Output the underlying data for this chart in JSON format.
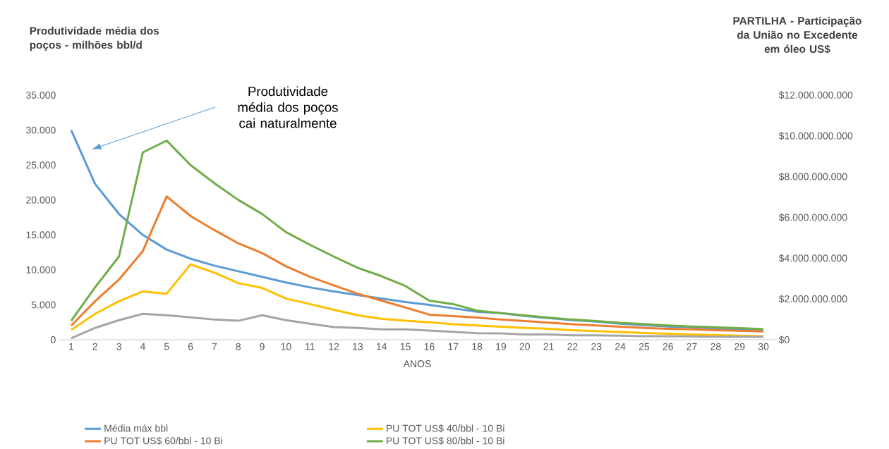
{
  "chart_data": {
    "type": "line",
    "ylabel": "Produtividade média dos poços - milhões bbl/d",
    "y2label": "PARTILHA - Participação da União no Excedente em óleo US$",
    "xlabel": "ANOS",
    "categories": [
      "1",
      "2",
      "3",
      "4",
      "5",
      "6",
      "7",
      "8",
      "9",
      "10",
      "11",
      "12",
      "13",
      "14",
      "15",
      "16",
      "17",
      "18",
      "19",
      "20",
      "21",
      "22",
      "23",
      "24",
      "25",
      "26",
      "27",
      "28",
      "29",
      "30"
    ],
    "series": [
      {
        "name": "Média máx bbl",
        "color": "#5b9bd5",
        "axis": "y",
        "values": [
          30000,
          22300,
          18000,
          15000,
          12900,
          11600,
          10600,
          9800,
          9000,
          8200,
          7500,
          6900,
          6400,
          5900,
          5400,
          5000,
          4500,
          4000,
          3800,
          3400,
          3100,
          2800,
          2600,
          2300,
          2100,
          1900,
          1800,
          1600,
          1500,
          1400
        ]
      },
      {
        "name": "PU TOT US$ 40/bbl - 10 Bi",
        "color": "#ffc000",
        "axis": "y2",
        "values": [
          480000000.0,
          1270000000.0,
          1890000000.0,
          2370000000.0,
          2260000000.0,
          3700000000.0,
          3290000000.0,
          2780000000.0,
          2540000000.0,
          2020000000.0,
          1750000000.0,
          1470000000.0,
          1200000000.0,
          1030000000.0,
          930000000.0,
          860000000.0,
          760000000.0,
          700000000.0,
          640000000.0,
          580000000.0,
          540000000.0,
          470000000.0,
          420000000.0,
          380000000.0,
          330000000.0,
          290000000.0,
          260000000.0,
          230000000.0,
          200000000.0,
          170000000.0
        ]
      },
      {
        "name": "PU TOT US$ 60/bbl - 10 Bi",
        "color": "#ed7d31",
        "axis": "y2",
        "values": [
          690000000.0,
          1890000000.0,
          2950000000.0,
          4350000000.0,
          7030000000.0,
          6070000000.0,
          5380000000.0,
          4730000000.0,
          4250000000.0,
          3600000000.0,
          3090000000.0,
          2670000000.0,
          2260000000.0,
          1920000000.0,
          1580000000.0,
          1230000000.0,
          1160000000.0,
          1090000000.0,
          990000000.0,
          920000000.0,
          840000000.0,
          760000000.0,
          700000000.0,
          640000000.0,
          580000000.0,
          540000000.0,
          510000000.0,
          470000000.0,
          440000000.0,
          410000000.0
        ]
      },
      {
        "name": "PU TOT US$ 80/bbl - 10 Bi",
        "color": "#70ad47",
        "axis": "y2",
        "values": [
          930000000.0,
          2570000000.0,
          4080000000.0,
          9190000000.0,
          9770000000.0,
          8570000000.0,
          7680000000.0,
          6860000000.0,
          6170000000.0,
          5280000000.0,
          4660000000.0,
          4080000000.0,
          3530000000.0,
          3120000000.0,
          2640000000.0,
          1920000000.0,
          1750000000.0,
          1430000000.0,
          1310000000.0,
          1190000000.0,
          1090000000.0,
          990000000.0,
          920000000.0,
          830000000.0,
          770000000.0,
          700000000.0,
          650000000.0,
          610000000.0,
          570000000.0,
          520000000.0
        ]
      },
      {
        "color": "#a5a5a5",
        "axis": "y2",
        "values": [
          70000000.0,
          580000000.0,
          960000000.0,
          1270000000.0,
          1200000000.0,
          1100000000.0,
          990000000.0,
          930000000.0,
          1200000000.0,
          960000000.0,
          790000000.0,
          620000000.0,
          580000000.0,
          510000000.0,
          510000000.0,
          450000000.0,
          390000000.0,
          320000000.0,
          310000000.0,
          260000000.0,
          260000000.0,
          220000000.0,
          220000000.0,
          200000000.0,
          170000000.0,
          170000000.0,
          160000000.0,
          150000000.0,
          150000000.0,
          150000000.0
        ]
      }
    ],
    "ylim": [
      0,
      35000
    ],
    "yticks": [
      0,
      {
        "value": 5000,
        "label": "5.000"
      },
      {
        "value": 10000,
        "label": "10.000"
      },
      {
        "value": 15000,
        "label": "15.000"
      },
      {
        "value": 20000,
        "label": "20.000"
      },
      {
        "value": 25000,
        "label": "25.000"
      },
      {
        "value": 30000,
        "label": "30.000"
      },
      {
        "value": 35000,
        "label": "35.000"
      }
    ],
    "y2lim": [
      0,
      12000000000.0
    ],
    "y2ticks": [
      {
        "value": 0,
        "label": "$0"
      },
      {
        "value": 2000000000.0,
        "label": "$2.000.000.000"
      },
      {
        "value": 4000000000.0,
        "label": "$4.000.000.000"
      },
      {
        "value": 6000000000.0,
        "label": "$6.000.000.000"
      },
      {
        "value": 8000000000.0,
        "label": "$8.000.000.000"
      },
      {
        "value": 10000000000.0,
        "label": "$10.000.000.000"
      },
      {
        "value": 12000000000.0,
        "label": "$12.000.000.000"
      }
    ],
    "annotations": [
      "Produtividade média dos poços cai naturalmente"
    ],
    "legend": "bottom"
  }
}
